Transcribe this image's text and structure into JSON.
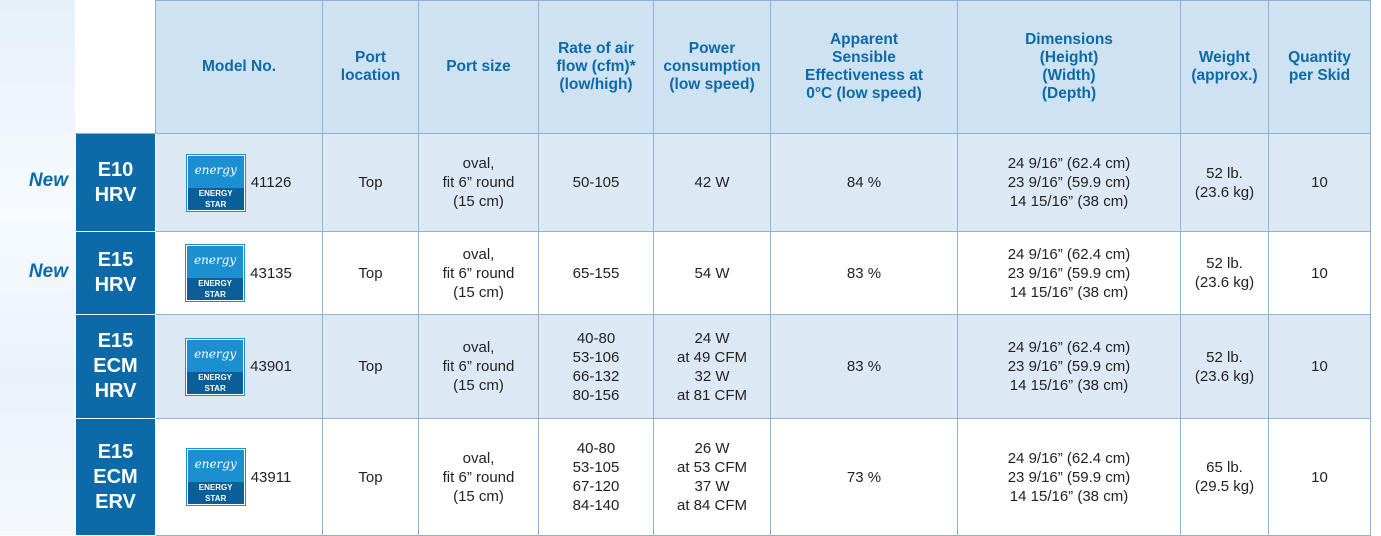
{
  "table": {
    "headers": [
      [
        "Model No."
      ],
      [
        "Port",
        "location"
      ],
      [
        "Port size"
      ],
      [
        "Rate of air",
        "flow (cfm)*",
        "(low/high)"
      ],
      [
        "Power",
        "consumption",
        "(low speed)"
      ],
      [
        "Apparent",
        "Sensible",
        "Effectiveness at",
        "0°C (low speed)"
      ],
      [
        "Dimensions",
        "(Height)",
        "(Width)",
        "(Depth)"
      ],
      [
        "Weight",
        "(approx.)"
      ],
      [
        "Quantity",
        "per Skid"
      ]
    ],
    "logo": {
      "script": "energy",
      "label": "ENERGY STAR"
    },
    "rows": [
      {
        "new": "New",
        "name": [
          "E10",
          "HRV"
        ],
        "model": "41126",
        "cells": [
          [
            "Top"
          ],
          [
            "oval,",
            "fit 6” round",
            "(15 cm)"
          ],
          [
            "50-105"
          ],
          [
            "42 W"
          ],
          [
            "84 %"
          ],
          [
            "24 9/16” (62.4 cm)",
            "23 9/16” (59.9 cm)",
            "14 15/16” (38 cm)"
          ],
          [
            "52 lb.",
            "(23.6 kg)"
          ],
          [
            "10"
          ]
        ]
      },
      {
        "new": "New",
        "name": [
          "E15",
          "HRV"
        ],
        "model": "43135",
        "cells": [
          [
            "Top"
          ],
          [
            "oval,",
            "fit 6” round",
            "(15 cm)"
          ],
          [
            "65-155"
          ],
          [
            "54 W"
          ],
          [
            "83 %"
          ],
          [
            "24 9/16” (62.4 cm)",
            "23 9/16” (59.9 cm)",
            "14 15/16” (38 cm)"
          ],
          [
            "52 lb.",
            "(23.6 kg)"
          ],
          [
            "10"
          ]
        ]
      },
      {
        "name": [
          "E15",
          "ECM",
          "HRV"
        ],
        "model": "43901",
        "cells": [
          [
            "Top"
          ],
          [
            "oval,",
            "fit 6” round",
            "(15 cm)"
          ],
          [
            "40-80",
            "53-106",
            "66-132",
            "80-156"
          ],
          [
            "24 W",
            "at 49 CFM",
            "32 W",
            "at 81 CFM"
          ],
          [
            "83 %"
          ],
          [
            "24 9/16” (62.4 cm)",
            "23 9/16” (59.9 cm)",
            "14 15/16” (38 cm)"
          ],
          [
            "52 lb.",
            "(23.6 kg)"
          ],
          [
            "10"
          ]
        ]
      },
      {
        "name": [
          "E15",
          "ECM",
          "ERV"
        ],
        "model": "43911",
        "cells": [
          [
            "Top"
          ],
          [
            "oval,",
            "fit 6” round",
            "(15 cm)"
          ],
          [
            "40-80",
            "53-105",
            "67-120",
            "84-140"
          ],
          [
            "26 W",
            "at 53 CFM",
            "37 W",
            "at 84 CFM"
          ],
          [
            "73 %"
          ],
          [
            "24 9/16” (62.4 cm)",
            "23 9/16” (59.9 cm)",
            "14 15/16” (38 cm)"
          ],
          [
            "65 lb.",
            "(29.5 kg)"
          ],
          [
            "10"
          ]
        ]
      }
    ]
  }
}
